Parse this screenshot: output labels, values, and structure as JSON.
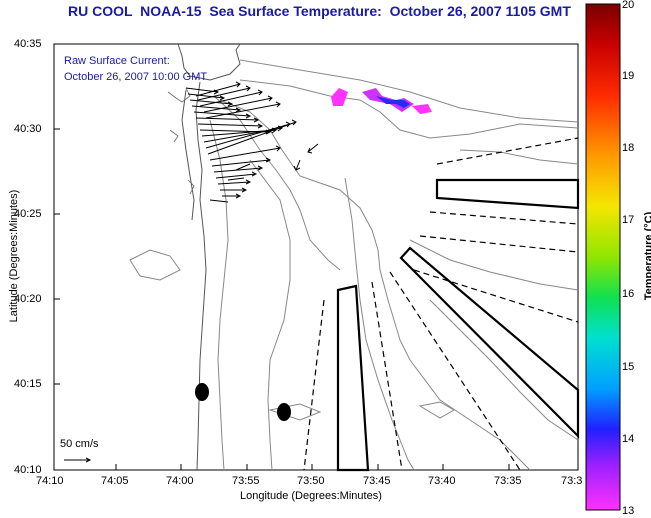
{
  "title": "RU COOL  NOAA-15  Sea Surface Temperature:  October 26, 2007 1105 GMT",
  "current_caption": {
    "line1": "Raw Surface Current:",
    "line2": "October 26, 2007 10:00 GMT"
  },
  "scale_legend": "50 cm/s",
  "axes": {
    "xlabel": "Longitude (Degrees:Minutes)",
    "ylabel": "Latitude (Degrees:Minutes)",
    "x_ticks": [
      "74:10",
      "74:05",
      "74:00",
      "73:55",
      "73:50",
      "73:45",
      "73:40",
      "73:35",
      "73:3"
    ],
    "y_ticks": [
      "40:35",
      "40:30",
      "40:25",
      "40:20",
      "40:15",
      "40:10"
    ]
  },
  "colorbar": {
    "label": "Temperature (°C)",
    "min": 13,
    "max": 20,
    "ticks": [
      "20",
      "19",
      "18",
      "17",
      "16",
      "15",
      "14",
      "13"
    ]
  }
}
